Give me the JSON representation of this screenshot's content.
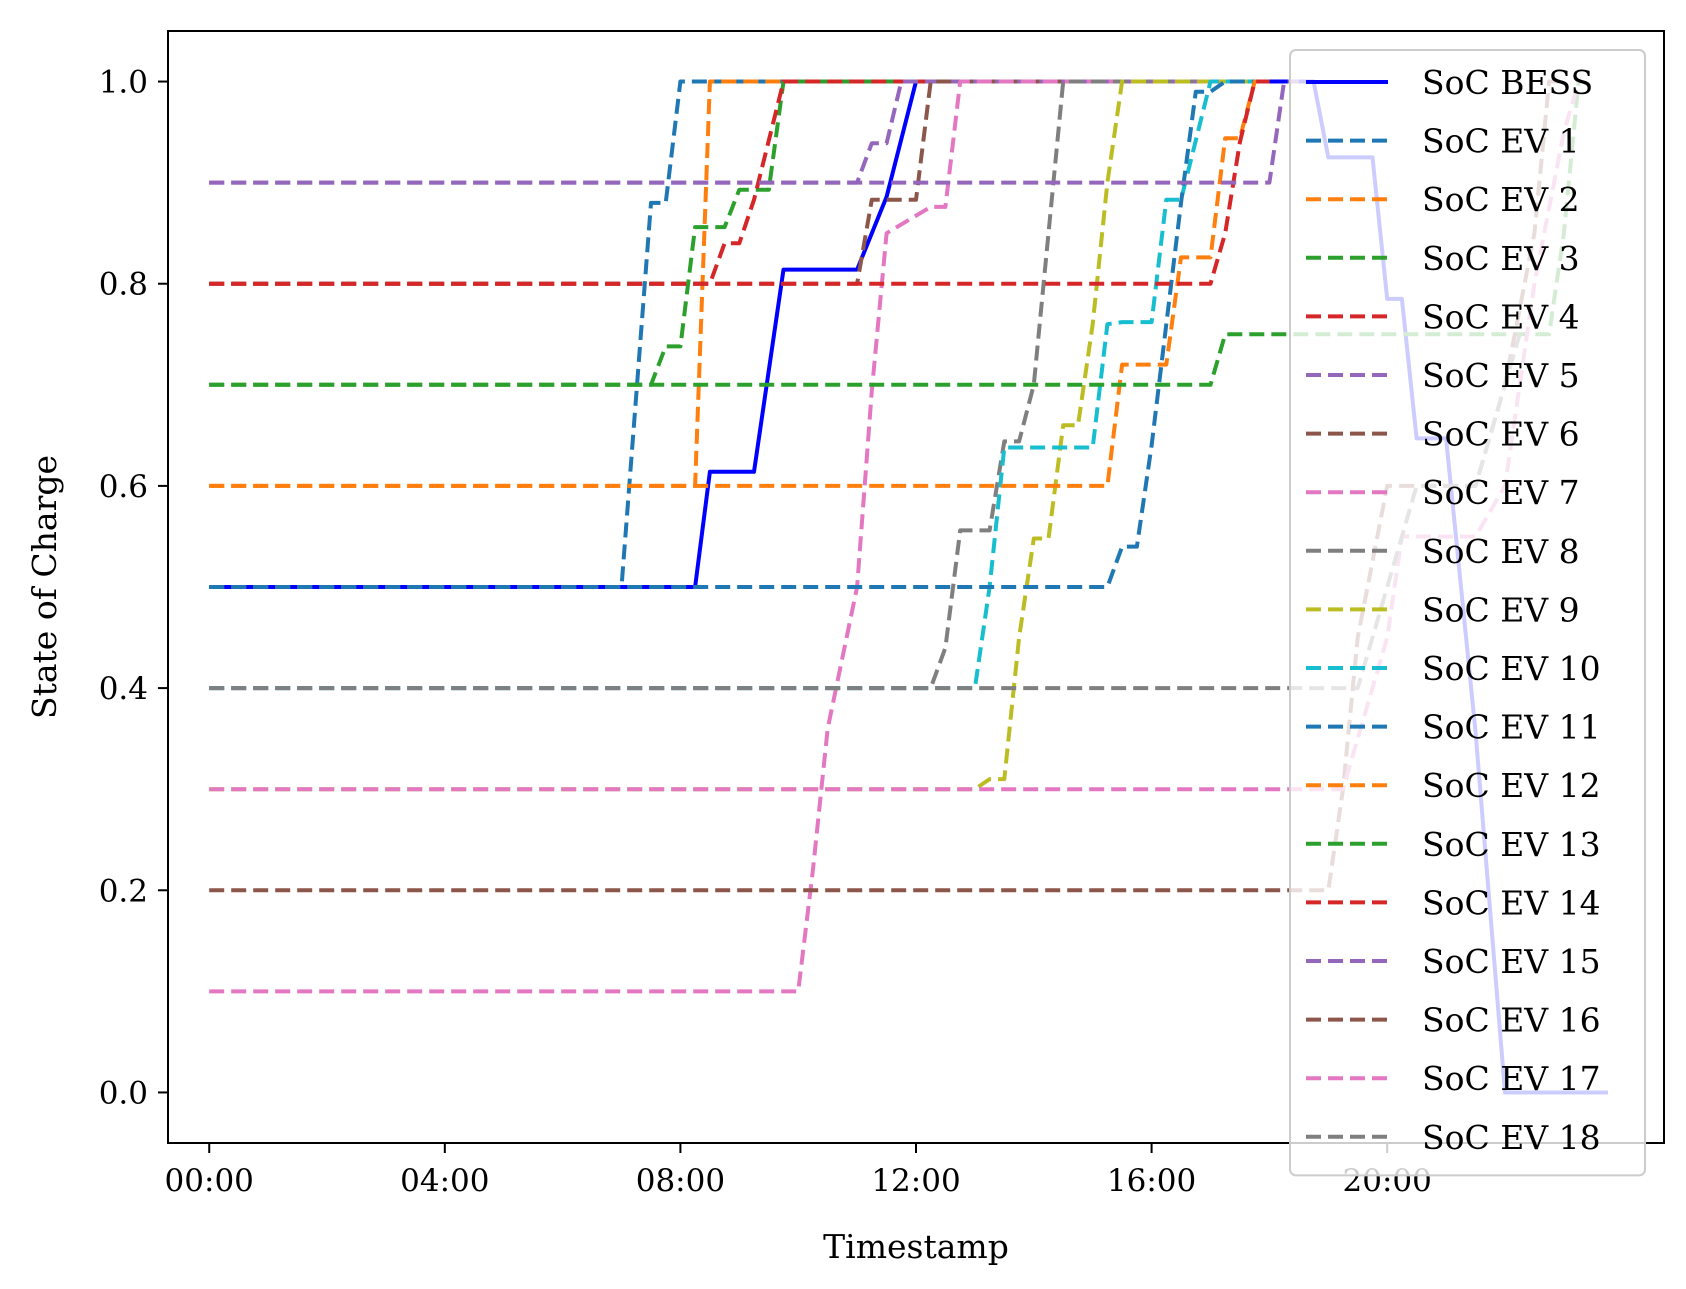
{
  "chart_data": {
    "type": "line",
    "title": "",
    "xlabel": "Timestamp",
    "ylabel": "State of Charge",
    "xlim": [
      "-00:42",
      "24:42"
    ],
    "ylim": [
      -0.05,
      1.05
    ],
    "xticks": [
      "00:00",
      "04:00",
      "08:00",
      "12:00",
      "16:00",
      "20:00"
    ],
    "yticks": [
      "0.0",
      "0.2",
      "0.4",
      "0.6",
      "0.8",
      "1.0"
    ],
    "grid": false,
    "legend_position": "right",
    "series": [
      {
        "name": "SoC BESS",
        "color": "#0000ff",
        "style": "solid",
        "x": [
          "00:00",
          "08:15",
          "08:30",
          "09:15",
          "09:45",
          "11:00",
          "11:30",
          "12:00",
          "18:45",
          "19:00",
          "19:45",
          "20:00",
          "20:15",
          "20:30",
          "21:00",
          "21:30",
          "22:00",
          "23:45"
        ],
        "y": [
          0.5,
          0.5,
          0.614,
          0.614,
          0.814,
          0.814,
          0.886,
          1.0,
          1.0,
          0.925,
          0.925,
          0.785,
          0.785,
          0.647,
          0.647,
          0.357,
          0.0,
          0.0
        ]
      },
      {
        "name": "SoC EV 1",
        "color": "#1f77b4",
        "style": "dashed",
        "x": [
          "00:00",
          "06:00",
          "06:15",
          "06:30",
          "06:45",
          "07:00",
          "07:30",
          "07:45",
          "08:00",
          "18:00"
        ],
        "y": [
          0.5,
          0.5,
          0.5,
          0.5,
          0.5,
          0.5,
          0.88,
          0.88,
          1.0,
          1.0
        ]
      },
      {
        "name": "SoC EV 2",
        "color": "#ff7f0e",
        "style": "dashed",
        "x": [
          "00:00",
          "08:00",
          "08:15",
          "08:30",
          "18:00"
        ],
        "y": [
          0.6,
          0.6,
          0.6,
          1.0,
          1.0
        ]
      },
      {
        "name": "SoC EV 3",
        "color": "#2ca02c",
        "style": "dashed",
        "x": [
          "00:00",
          "07:30",
          "07:45",
          "08:00",
          "08:15",
          "08:45",
          "09:00",
          "09:30",
          "09:45",
          "18:00"
        ],
        "y": [
          0.7,
          0.7,
          0.738,
          0.738,
          0.856,
          0.856,
          0.893,
          0.893,
          1.0,
          1.0
        ]
      },
      {
        "name": "SoC EV 4",
        "color": "#d62728",
        "style": "dashed",
        "x": [
          "00:00",
          "08:15",
          "08:30",
          "08:45",
          "09:00",
          "09:15",
          "09:45",
          "18:00"
        ],
        "y": [
          0.8,
          0.8,
          0.8,
          0.84,
          0.84,
          0.883,
          1.0,
          1.0
        ]
      },
      {
        "name": "SoC EV 5",
        "color": "#9467bd",
        "style": "dashed",
        "x": [
          "00:00",
          "10:00",
          "10:15",
          "10:45",
          "11:00",
          "11:15",
          "11:30",
          "11:45",
          "18:00"
        ],
        "y": [
          0.9,
          0.9,
          0.9,
          0.9,
          0.9,
          0.939,
          0.939,
          1.0,
          1.0
        ]
      },
      {
        "name": "SoC EV 6",
        "color": "#8c564b",
        "style": "dashed",
        "x": [
          "00:00",
          "11:00",
          "11:15",
          "11:30",
          "12:00",
          "12:15",
          "18:00"
        ],
        "y": [
          0.8,
          0.8,
          0.883,
          0.883,
          0.883,
          1.0,
          1.0
        ]
      },
      {
        "name": "SoC EV 7",
        "color": "#e377c2",
        "style": "dashed",
        "x": [
          "00:00",
          "10:00",
          "10:15",
          "10:30",
          "11:00",
          "11:15",
          "11:30",
          "12:15",
          "12:30",
          "12:45",
          "18:00"
        ],
        "y": [
          0.1,
          0.1,
          0.22,
          0.36,
          0.5,
          0.694,
          0.85,
          0.876,
          0.876,
          1.0,
          1.0
        ]
      },
      {
        "name": "SoC EV 8",
        "color": "#7f7f7f",
        "style": "dashed",
        "x": [
          "00:00",
          "12:00",
          "12:15",
          "12:30",
          "12:45",
          "13:00",
          "13:15",
          "13:30",
          "13:45",
          "14:00",
          "14:15",
          "14:30",
          "18:00"
        ],
        "y": [
          0.4,
          0.4,
          0.4,
          0.44,
          0.556,
          0.556,
          0.556,
          0.644,
          0.644,
          0.7,
          0.85,
          1.0,
          1.0
        ]
      },
      {
        "name": "SoC EV 9",
        "color": "#bcbd22",
        "style": "dashed",
        "x": [
          "00:00",
          "13:00",
          "13:15",
          "13:30",
          "13:45",
          "14:00",
          "14:15",
          "14:30",
          "14:45",
          "15:00",
          "15:15",
          "15:30",
          "18:00"
        ],
        "y": [
          0.3,
          0.3,
          0.31,
          0.31,
          0.45,
          0.548,
          0.548,
          0.66,
          0.66,
          0.76,
          0.9,
          1.0,
          1.0
        ]
      },
      {
        "name": "SoC EV 10",
        "color": "#17becf",
        "style": "dashed",
        "x": [
          "00:00",
          "13:00",
          "13:15",
          "13:30",
          "14:15",
          "14:30",
          "15:00",
          "15:15",
          "15:30",
          "16:00",
          "16:15",
          "16:30",
          "17:00",
          "17:15",
          "18:00"
        ],
        "y": [
          0.4,
          0.4,
          0.5,
          0.638,
          0.638,
          0.638,
          0.638,
          0.76,
          0.762,
          0.762,
          0.883,
          0.883,
          1.0,
          1.0,
          1.0
        ]
      },
      {
        "name": "SoC EV 11",
        "color": "#1f77b4",
        "style": "dashed",
        "x": [
          "00:00",
          "15:15",
          "15:30",
          "15:45",
          "16:00",
          "16:15",
          "16:30",
          "16:45",
          "17:00",
          "17:15",
          "18:00"
        ],
        "y": [
          0.5,
          0.5,
          0.54,
          0.54,
          0.64,
          0.76,
          0.88,
          0.99,
          0.99,
          1.0,
          1.0
        ]
      },
      {
        "name": "SoC EV 12",
        "color": "#ff7f0e",
        "style": "dashed",
        "x": [
          "00:00",
          "15:15",
          "15:30",
          "16:00",
          "16:15",
          "16:30",
          "17:00",
          "17:15",
          "17:30",
          "17:45",
          "18:00"
        ],
        "y": [
          0.6,
          0.6,
          0.72,
          0.72,
          0.72,
          0.826,
          0.826,
          0.944,
          0.944,
          1.0,
          1.0
        ]
      },
      {
        "name": "SoC EV 13",
        "color": "#2ca02c",
        "style": "dashed",
        "x": [
          "00:00",
          "16:45",
          "17:00",
          "17:15",
          "22:45",
          "23:00",
          "23:15"
        ],
        "y": [
          0.7,
          0.7,
          0.7,
          0.75,
          0.75,
          0.85,
          1.0
        ]
      },
      {
        "name": "SoC EV 14",
        "color": "#d62728",
        "style": "dashed",
        "x": [
          "00:00",
          "17:00",
          "17:15",
          "17:30",
          "17:45",
          "18:00"
        ],
        "y": [
          0.8,
          0.8,
          0.85,
          0.94,
          1.0,
          1.0
        ]
      },
      {
        "name": "SoC EV 15",
        "color": "#9467bd",
        "style": "dashed",
        "x": [
          "00:00",
          "17:45",
          "18:00",
          "18:15",
          "18:30"
        ],
        "y": [
          0.9,
          0.9,
          0.9,
          1.0,
          1.0
        ]
      },
      {
        "name": "SoC EV 16",
        "color": "#8c564b",
        "style": "dashed",
        "x": [
          "00:00",
          "18:45",
          "19:00",
          "19:15",
          "19:30",
          "20:00",
          "20:15",
          "20:30",
          "21:00",
          "21:30",
          "22:00",
          "22:30",
          "22:45",
          "23:00"
        ],
        "y": [
          0.2,
          0.2,
          0.2,
          0.3,
          0.45,
          0.6,
          0.6,
          0.6,
          0.6,
          0.6,
          0.7,
          0.85,
          1.0,
          1.0
        ]
      },
      {
        "name": "SoC EV 17",
        "color": "#e377c2",
        "style": "dashed",
        "x": [
          "00:00",
          "19:00",
          "19:15",
          "19:30",
          "20:00",
          "20:15",
          "21:00",
          "21:15",
          "21:30",
          "22:00",
          "22:15",
          "22:30",
          "23:00",
          "23:15"
        ],
        "y": [
          0.3,
          0.3,
          0.3,
          0.35,
          0.45,
          0.55,
          0.55,
          0.55,
          0.55,
          0.6,
          0.7,
          0.8,
          0.95,
          1.0
        ]
      },
      {
        "name": "SoC EV 18",
        "color": "#7f7f7f",
        "style": "dashed",
        "x": [
          "00:00",
          "19:30",
          "19:45",
          "20:00",
          "20:15",
          "20:30",
          "21:00",
          "21:15",
          "21:30",
          "22:00",
          "22:15"
        ],
        "y": [
          0.4,
          0.4,
          0.45,
          0.5,
          0.55,
          0.6,
          0.6,
          0.6,
          0.6,
          0.7,
          0.75
        ]
      }
    ]
  }
}
